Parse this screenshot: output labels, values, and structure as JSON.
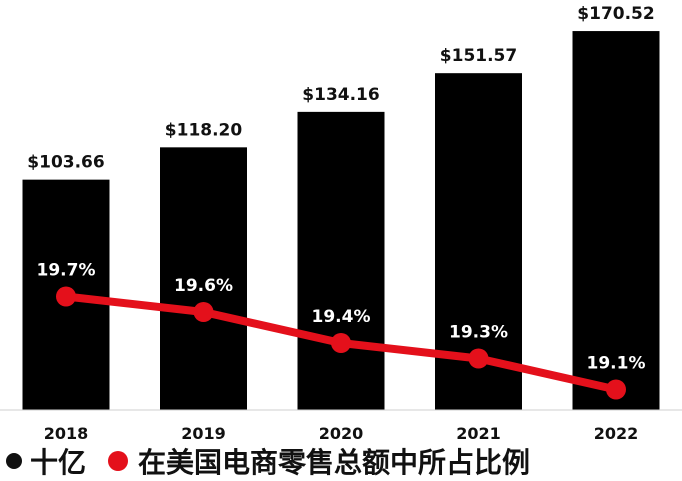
{
  "chart_data": {
    "type": "bar",
    "categories": [
      "2018",
      "2019",
      "2020",
      "2021",
      "2022"
    ],
    "series": [
      {
        "name": "十亿",
        "type": "bar",
        "values": [
          103.66,
          118.2,
          134.16,
          151.57,
          170.52
        ],
        "labels": [
          "$103.66",
          "$118.20",
          "$134.16",
          "$151.57",
          "$170.52"
        ],
        "color": "#000000"
      },
      {
        "name": "在美国电商零售总额中所占比例",
        "type": "line",
        "values": [
          19.7,
          19.6,
          19.4,
          19.3,
          19.1
        ],
        "labels": [
          "19.7%",
          "19.6%",
          "19.4%",
          "19.3%",
          "19.1%"
        ],
        "color": "#e4101b"
      }
    ],
    "ylim": [
      0,
      180
    ],
    "line_ylim": [
      18,
      21
    ],
    "grid": false,
    "legend_position": "bottom"
  },
  "legend": {
    "items": [
      {
        "label": "十亿",
        "color": "#111111"
      },
      {
        "label": "在美国电商零售总额中所占比例",
        "color": "#e4101b"
      }
    ]
  }
}
